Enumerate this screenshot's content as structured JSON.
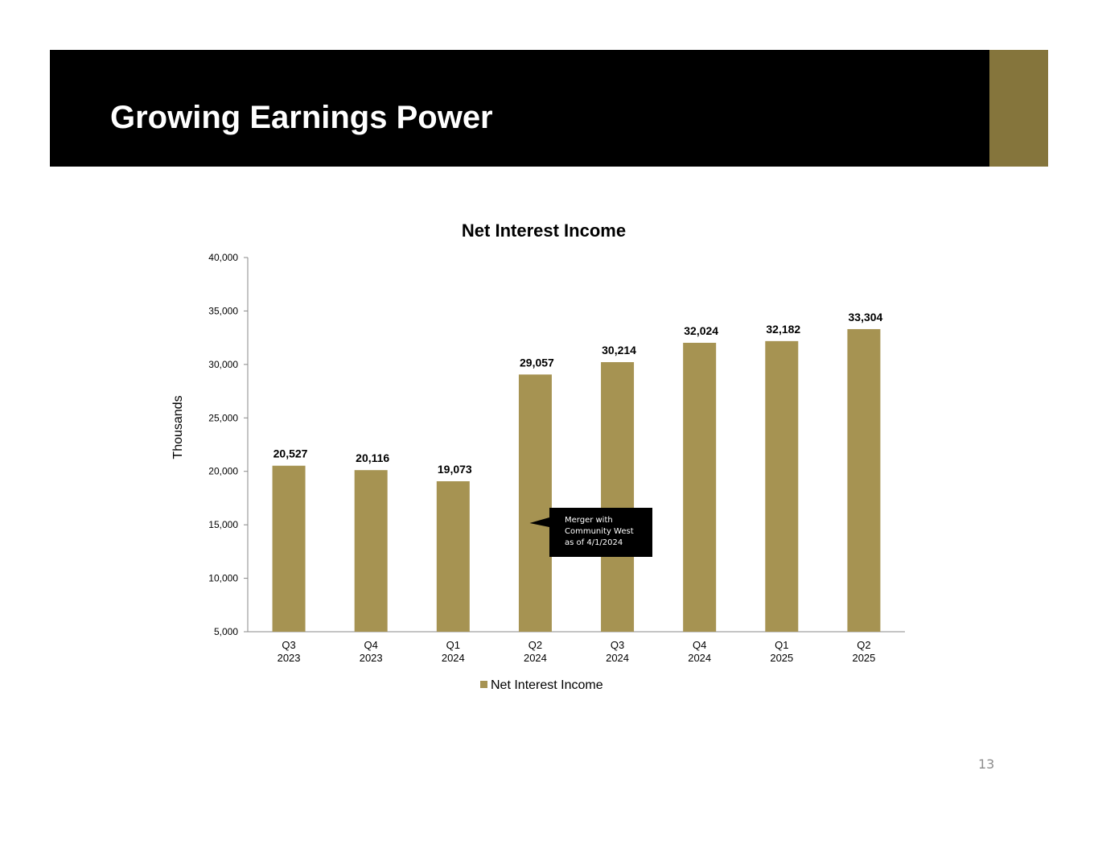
{
  "slide": {
    "title": "Growing Earnings Power",
    "page_number": "13",
    "colors": {
      "header_bg": "#000000",
      "accent": "#85753c",
      "bar": "#a69352"
    }
  },
  "chart_data": {
    "type": "bar",
    "title": "Net Interest Income",
    "ylabel": "Thousands",
    "xlabel": "",
    "categories": [
      [
        "Q3",
        "2023"
      ],
      [
        "Q4",
        "2023"
      ],
      [
        "Q1",
        "2024"
      ],
      [
        "Q2",
        "2024"
      ],
      [
        "Q3",
        "2024"
      ],
      [
        "Q4",
        "2024"
      ],
      [
        "Q1",
        "2025"
      ],
      [
        "Q2",
        "2025"
      ]
    ],
    "series": [
      {
        "name": "Net Interest Income",
        "values": [
          20527,
          20116,
          19073,
          29057,
          30214,
          32024,
          32182,
          33304
        ]
      }
    ],
    "data_labels": [
      "20,527",
      "20,116",
      "19,073",
      "29,057",
      "30,214",
      "32,024",
      "32,182",
      "33,304"
    ],
    "ylim": [
      5000,
      40000
    ],
    "yticks": [
      5000,
      10000,
      15000,
      20000,
      25000,
      30000,
      35000,
      40000
    ],
    "ytick_labels": [
      "5,000",
      "10,000",
      "15,000",
      "20,000",
      "25,000",
      "30,000",
      "35,000",
      "40,000"
    ],
    "grid": false,
    "legend": {
      "position": "bottom",
      "entries": [
        "Net Interest Income"
      ]
    },
    "annotation": {
      "lines": [
        "Merger with",
        "Community West",
        "as of 4/1/2024"
      ],
      "points_to_category": 3
    }
  }
}
